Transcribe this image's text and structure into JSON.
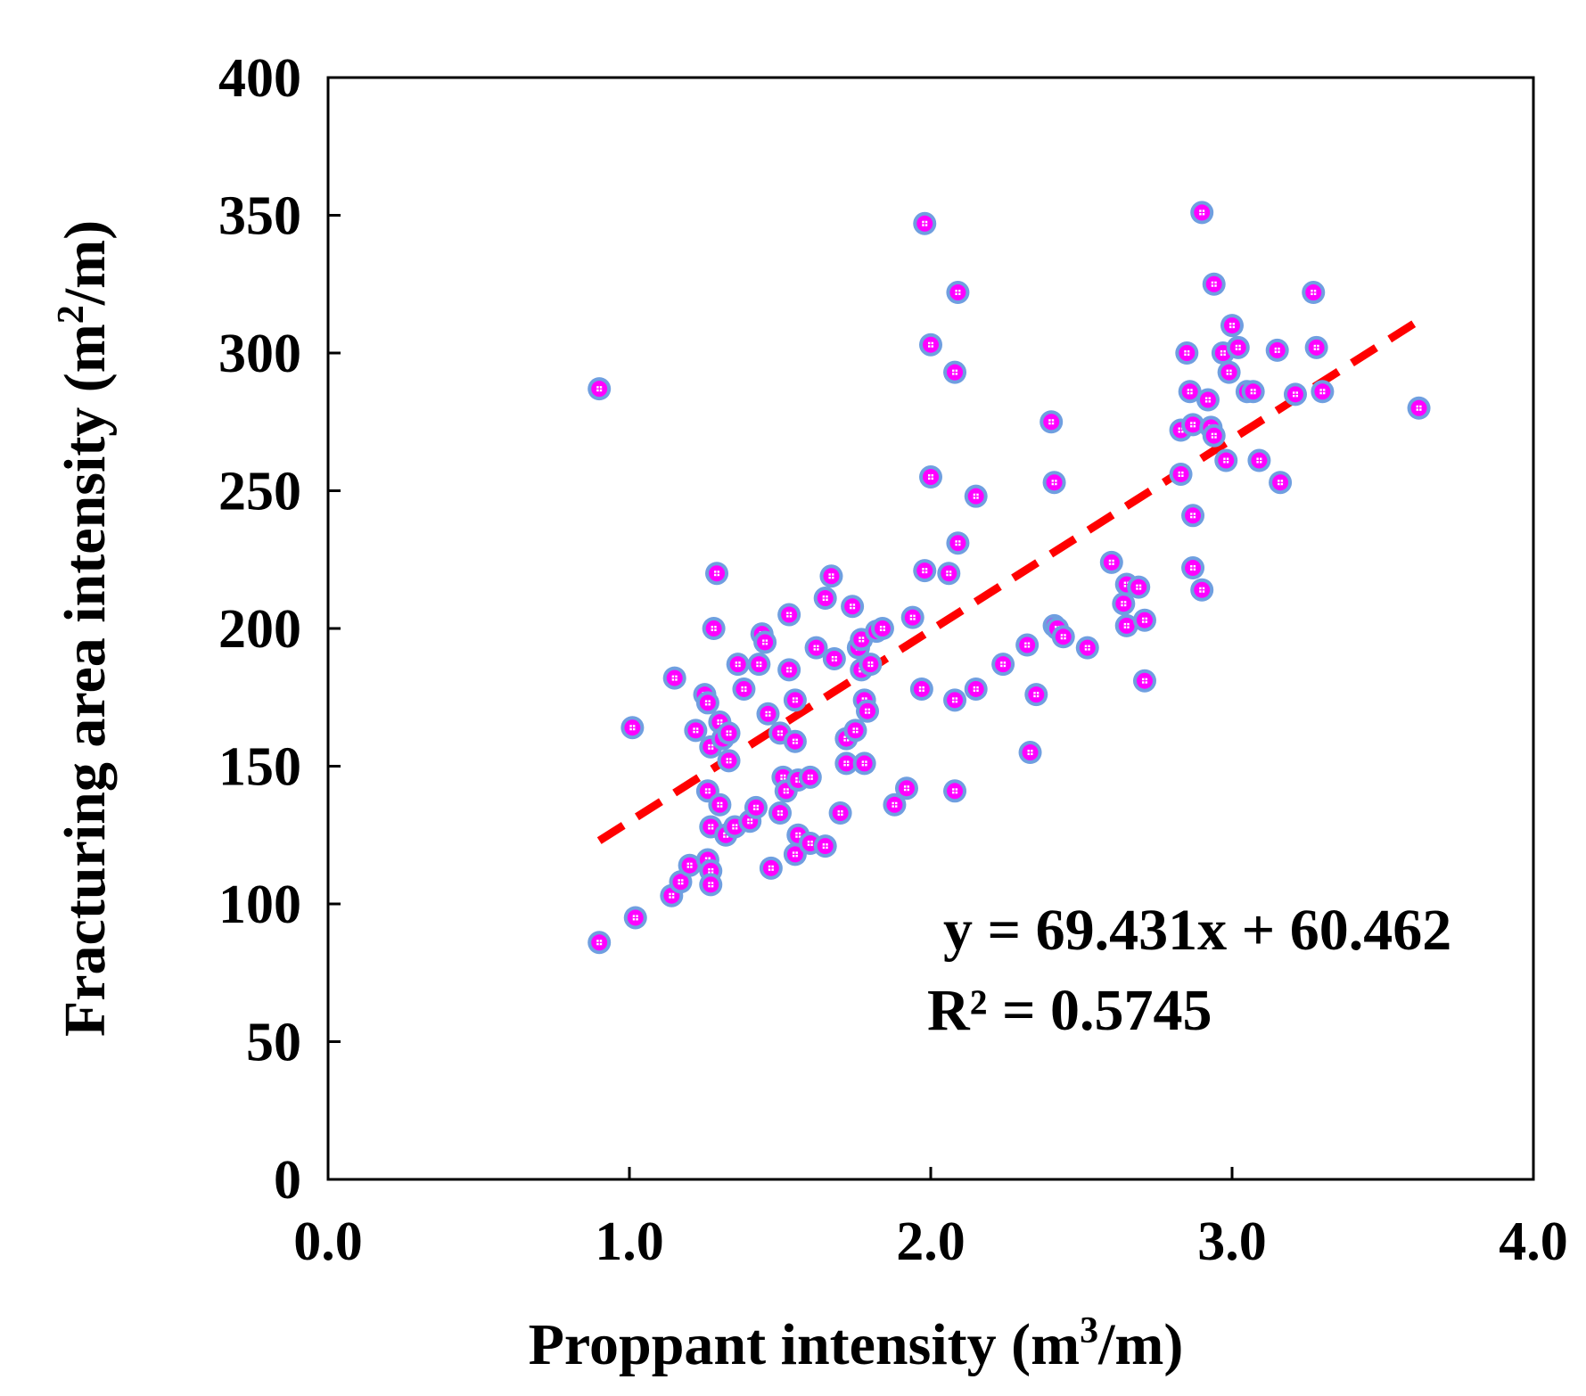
{
  "chart_data": {
    "type": "scatter",
    "xlabel_main": "Proppant intensity (m",
    "xlabel_sup": "3",
    "xlabel_end": "/m)",
    "ylabel_main": "Fracturing area intensity (m",
    "ylabel_sup": "2",
    "ylabel_end": "/m)",
    "xlim": [
      0,
      4
    ],
    "ylim": [
      0,
      400
    ],
    "x_ticks": [
      "0.0",
      "1.0",
      "2.0",
      "3.0",
      "4.0"
    ],
    "y_ticks": [
      "0",
      "50",
      "100",
      "150",
      "200",
      "250",
      "300",
      "350",
      "400"
    ],
    "grid": false,
    "marker_colors": {
      "outer": "#6f9fe0",
      "inner": "#ff00ff",
      "center": "#ffffff"
    },
    "trendline": {
      "equation": "y = 69.431x + 60.462",
      "r_squared": "R² = 0.5745",
      "slope": 69.431,
      "intercept": 60.462,
      "x_range": [
        0.9,
        3.62
      ],
      "color": "#ff0000"
    },
    "points": [
      [
        0.9,
        287
      ],
      [
        0.9,
        86
      ],
      [
        1.01,
        164
      ],
      [
        1.02,
        95
      ],
      [
        1.15,
        182
      ],
      [
        1.14,
        103
      ],
      [
        1.17,
        108
      ],
      [
        1.2,
        114
      ],
      [
        1.22,
        163
      ],
      [
        1.25,
        176
      ],
      [
        1.26,
        173
      ],
      [
        1.27,
        157
      ],
      [
        1.26,
        141
      ],
      [
        1.27,
        128
      ],
      [
        1.26,
        116
      ],
      [
        1.27,
        112
      ],
      [
        1.27,
        107
      ],
      [
        1.29,
        220
      ],
      [
        1.28,
        200
      ],
      [
        1.3,
        166
      ],
      [
        1.31,
        160
      ],
      [
        1.33,
        162
      ],
      [
        1.33,
        152
      ],
      [
        1.3,
        136
      ],
      [
        1.32,
        125
      ],
      [
        1.35,
        128
      ],
      [
        1.36,
        187
      ],
      [
        1.38,
        178
      ],
      [
        1.4,
        130
      ],
      [
        1.42,
        135
      ],
      [
        1.44,
        198
      ],
      [
        1.45,
        195
      ],
      [
        1.43,
        187
      ],
      [
        1.46,
        169
      ],
      [
        1.47,
        113
      ],
      [
        1.5,
        162
      ],
      [
        1.51,
        146
      ],
      [
        1.5,
        133
      ],
      [
        1.52,
        141
      ],
      [
        1.53,
        205
      ],
      [
        1.53,
        185
      ],
      [
        1.55,
        174
      ],
      [
        1.55,
        159
      ],
      [
        1.56,
        145
      ],
      [
        1.56,
        125
      ],
      [
        1.55,
        118
      ],
      [
        1.6,
        146
      ],
      [
        1.6,
        122
      ],
      [
        1.62,
        193
      ],
      [
        1.65,
        121
      ],
      [
        1.65,
        211
      ],
      [
        1.67,
        219
      ],
      [
        1.68,
        189
      ],
      [
        1.7,
        133
      ],
      [
        1.72,
        160
      ],
      [
        1.72,
        151
      ],
      [
        1.74,
        208
      ],
      [
        1.75,
        163
      ],
      [
        1.76,
        193
      ],
      [
        1.77,
        196
      ],
      [
        1.77,
        185
      ],
      [
        1.78,
        174
      ],
      [
        1.79,
        170
      ],
      [
        1.78,
        151
      ],
      [
        1.8,
        187
      ],
      [
        1.82,
        199
      ],
      [
        1.84,
        200
      ],
      [
        1.88,
        136
      ],
      [
        1.92,
        142
      ],
      [
        1.94,
        204
      ],
      [
        1.97,
        178
      ],
      [
        1.98,
        221
      ],
      [
        1.98,
        347
      ],
      [
        2.0,
        303
      ],
      [
        2.0,
        255
      ],
      [
        2.06,
        220
      ],
      [
        2.08,
        293
      ],
      [
        2.08,
        174
      ],
      [
        2.08,
        141
      ],
      [
        2.09,
        322
      ],
      [
        2.09,
        231
      ],
      [
        2.15,
        248
      ],
      [
        2.15,
        178
      ],
      [
        2.24,
        187
      ],
      [
        2.32,
        194
      ],
      [
        2.33,
        155
      ],
      [
        2.35,
        176
      ],
      [
        2.4,
        275
      ],
      [
        2.41,
        253
      ],
      [
        2.41,
        201
      ],
      [
        2.42,
        200
      ],
      [
        2.44,
        197
      ],
      [
        2.52,
        193
      ],
      [
        2.6,
        224
      ],
      [
        2.64,
        209
      ],
      [
        2.65,
        216
      ],
      [
        2.65,
        201
      ],
      [
        2.69,
        215
      ],
      [
        2.71,
        203
      ],
      [
        2.71,
        181
      ],
      [
        2.83,
        272
      ],
      [
        2.83,
        256
      ],
      [
        2.85,
        300
      ],
      [
        2.86,
        286
      ],
      [
        2.87,
        274
      ],
      [
        2.87,
        241
      ],
      [
        2.87,
        222
      ],
      [
        2.9,
        351
      ],
      [
        2.9,
        214
      ],
      [
        2.92,
        283
      ],
      [
        2.93,
        273
      ],
      [
        2.94,
        270
      ],
      [
        2.94,
        325
      ],
      [
        2.97,
        300
      ],
      [
        2.98,
        261
      ],
      [
        2.99,
        293
      ],
      [
        3.0,
        310
      ],
      [
        3.02,
        302
      ],
      [
        3.05,
        286
      ],
      [
        3.07,
        286
      ],
      [
        3.09,
        261
      ],
      [
        3.15,
        301
      ],
      [
        3.16,
        253
      ],
      [
        3.21,
        285
      ],
      [
        3.27,
        322
      ],
      [
        3.28,
        302
      ],
      [
        3.3,
        286
      ],
      [
        3.62,
        280
      ]
    ]
  }
}
